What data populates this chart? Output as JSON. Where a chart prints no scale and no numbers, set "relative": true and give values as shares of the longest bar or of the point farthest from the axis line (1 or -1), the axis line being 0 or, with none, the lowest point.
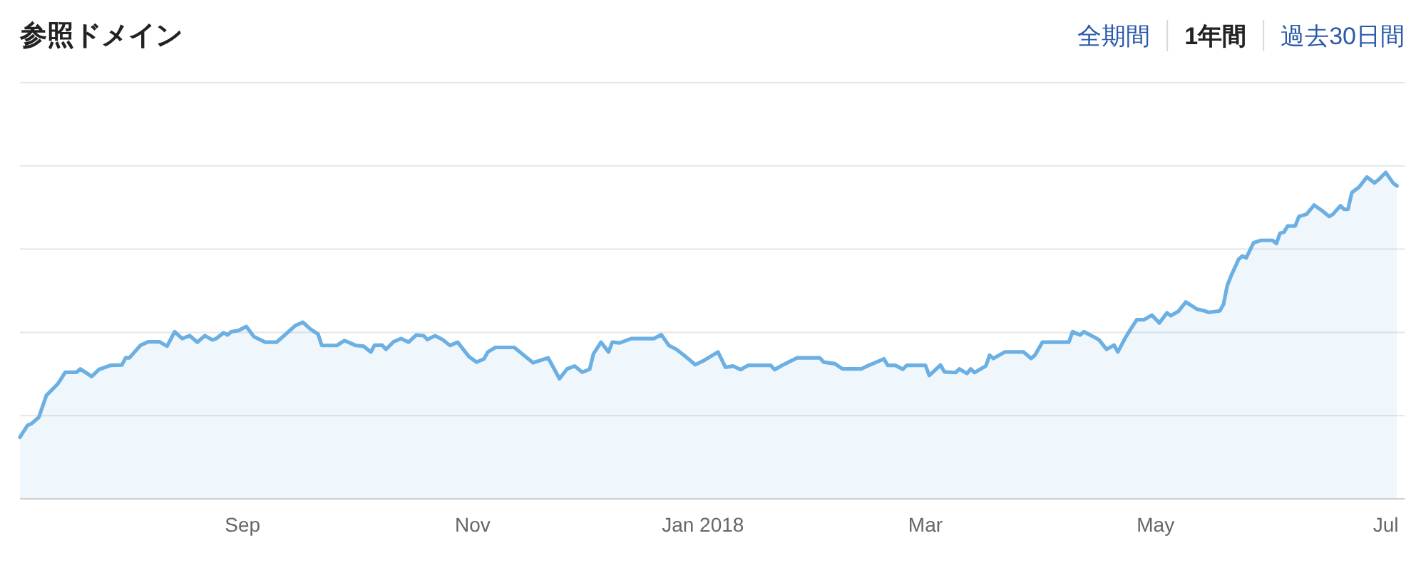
{
  "chart_data": {
    "type": "area",
    "title": "参照ドメイン",
    "relative": true,
    "annotations": [
      "全期間",
      "1年間",
      "過去30日間"
    ],
    "xlim": [
      "2017-07-04",
      "2018-07-06"
    ],
    "xticks": [
      {
        "value": "2017-09-01",
        "label": "Sep"
      },
      {
        "value": "2017-11-01",
        "label": "Nov"
      },
      {
        "value": "2018-01-01",
        "label": "Jan 2018"
      },
      {
        "value": "2018-03-01",
        "label": "Mar"
      },
      {
        "value": "2018-05-01",
        "label": "May"
      },
      {
        "value": "2018-07-01",
        "label": "Jul"
      }
    ],
    "tick_labels": "x",
    "grid": "y",
    "marker": "none",
    "line_style": "solid",
    "x": [
      "2017-07-04",
      "2017-07-06",
      "2017-07-07",
      "2017-07-09",
      "2017-07-11",
      "2017-07-14",
      "2017-07-16",
      "2017-07-19",
      "2017-07-20",
      "2017-07-23",
      "2017-07-25",
      "2017-07-28",
      "2017-07-31",
      "2017-08-01",
      "2017-08-02",
      "2017-08-05",
      "2017-08-07",
      "2017-08-10",
      "2017-08-12",
      "2017-08-14",
      "2017-08-16",
      "2017-08-18",
      "2017-08-20",
      "2017-08-22",
      "2017-08-24",
      "2017-08-25",
      "2017-08-27",
      "2017-08-28",
      "2017-08-29",
      "2017-08-31",
      "2017-09-02",
      "2017-09-04",
      "2017-09-07",
      "2017-09-10",
      "2017-09-12",
      "2017-09-15",
      "2017-09-17",
      "2017-09-19",
      "2017-09-21",
      "2017-09-22",
      "2017-09-26",
      "2017-09-28",
      "2017-10-01",
      "2017-10-03",
      "2017-10-05",
      "2017-10-06",
      "2017-10-08",
      "2017-10-09",
      "2017-10-11",
      "2017-10-13",
      "2017-10-15",
      "2017-10-17",
      "2017-10-19",
      "2017-10-20",
      "2017-10-22",
      "2017-10-24",
      "2017-10-26",
      "2017-10-28",
      "2017-10-31",
      "2017-11-02",
      "2017-11-04",
      "2017-11-05",
      "2017-11-07",
      "2017-11-12",
      "2017-11-17",
      "2017-11-21",
      "2017-11-24",
      "2017-11-26",
      "2017-11-28",
      "2017-11-30",
      "2017-12-02",
      "2017-12-03",
      "2017-12-05",
      "2017-12-07",
      "2017-12-08",
      "2017-12-10",
      "2017-12-13",
      "2017-12-19",
      "2017-12-21",
      "2017-12-23",
      "2017-12-25",
      "2017-12-27",
      "2017-12-30",
      "2018-01-01",
      "2018-01-05",
      "2018-01-07",
      "2018-01-09",
      "2018-01-11",
      "2018-01-13",
      "2018-01-19",
      "2018-01-20",
      "2018-01-22",
      "2018-01-26",
      "2018-02-01",
      "2018-02-02",
      "2018-02-05",
      "2018-02-07",
      "2018-02-12",
      "2018-02-14",
      "2018-02-18",
      "2018-02-19",
      "2018-02-21",
      "2018-02-23",
      "2018-02-24",
      "2018-03-01",
      "2018-03-02",
      "2018-03-05",
      "2018-03-06",
      "2018-03-09",
      "2018-03-10",
      "2018-03-12",
      "2018-03-13",
      "2018-03-14",
      "2018-03-17",
      "2018-03-18",
      "2018-03-19",
      "2018-03-22",
      "2018-03-25",
      "2018-03-27",
      "2018-03-29",
      "2018-03-30",
      "2018-04-01",
      "2018-04-08",
      "2018-04-09",
      "2018-04-11",
      "2018-04-12",
      "2018-04-15",
      "2018-04-16",
      "2018-04-18",
      "2018-04-20",
      "2018-04-21",
      "2018-04-23",
      "2018-04-24",
      "2018-04-26",
      "2018-04-28",
      "2018-04-30",
      "2018-05-02",
      "2018-05-04",
      "2018-05-05",
      "2018-05-07",
      "2018-05-09",
      "2018-05-12",
      "2018-05-14",
      "2018-05-15",
      "2018-05-18",
      "2018-05-19",
      "2018-05-20",
      "2018-05-21",
      "2018-05-23",
      "2018-05-24",
      "2018-05-25",
      "2018-05-27",
      "2018-05-29",
      "2018-06-01",
      "2018-06-02",
      "2018-06-03",
      "2018-06-04",
      "2018-06-05",
      "2018-06-07",
      "2018-06-08",
      "2018-06-10",
      "2018-06-12",
      "2018-06-14",
      "2018-06-16",
      "2018-06-17",
      "2018-06-19",
      "2018-06-20",
      "2018-06-21",
      "2018-06-22",
      "2018-06-24",
      "2018-06-26",
      "2018-06-28",
      "2018-06-29",
      "2018-07-01",
      "2018-07-03",
      "2018-07-04"
    ],
    "series": [
      {
        "color": "#6cb0e3",
        "values": [
          0.189,
          0.225,
          0.23,
          0.25,
          0.317,
          0.352,
          0.388,
          0.388,
          0.398,
          0.375,
          0.397,
          0.409,
          0.41,
          0.432,
          0.432,
          0.471,
          0.481,
          0.481,
          0.468,
          0.512,
          0.491,
          0.5,
          0.48,
          0.5,
          0.487,
          0.491,
          0.509,
          0.502,
          0.512,
          0.516,
          0.528,
          0.497,
          0.48,
          0.48,
          0.5,
          0.531,
          0.541,
          0.52,
          0.505,
          0.47,
          0.47,
          0.485,
          0.47,
          0.468,
          0.45,
          0.471,
          0.471,
          0.458,
          0.481,
          0.491,
          0.48,
          0.502,
          0.5,
          0.488,
          0.5,
          0.488,
          0.47,
          0.48,
          0.436,
          0.419,
          0.429,
          0.45,
          0.464,
          0.464,
          0.417,
          0.432,
          0.368,
          0.398,
          0.407,
          0.388,
          0.397,
          0.444,
          0.48,
          0.45,
          0.48,
          0.478,
          0.491,
          0.491,
          0.503,
          0.47,
          0.458,
          0.44,
          0.411,
          0.422,
          0.45,
          0.403,
          0.407,
          0.396,
          0.409,
          0.409,
          0.396,
          0.409,
          0.432,
          0.432,
          0.419,
          0.414,
          0.398,
          0.398,
          0.409,
          0.429,
          0.409,
          0.409,
          0.397,
          0.409,
          0.409,
          0.378,
          0.41,
          0.389,
          0.387,
          0.398,
          0.384,
          0.398,
          0.387,
          0.407,
          0.44,
          0.43,
          0.45,
          0.45,
          0.45,
          0.43,
          0.44,
          0.48,
          0.48,
          0.512,
          0.502,
          0.512,
          0.494,
          0.487,
          0.458,
          0.471,
          0.45,
          0.494,
          0.513,
          0.549,
          0.549,
          0.563,
          0.539,
          0.57,
          0.561,
          0.574,
          0.603,
          0.581,
          0.576,
          0.571,
          0.576,
          0.596,
          0.654,
          0.683,
          0.734,
          0.744,
          0.738,
          0.785,
          0.792,
          0.792,
          0.782,
          0.814,
          0.817,
          0.836,
          0.836,
          0.865,
          0.872,
          0.9,
          0.884,
          0.865,
          0.872,
          0.898,
          0.887,
          0.887,
          0.938,
          0.956,
          0.986,
          0.968,
          0.977,
          1.0,
          0.967,
          0.959
        ]
      }
    ]
  }
}
